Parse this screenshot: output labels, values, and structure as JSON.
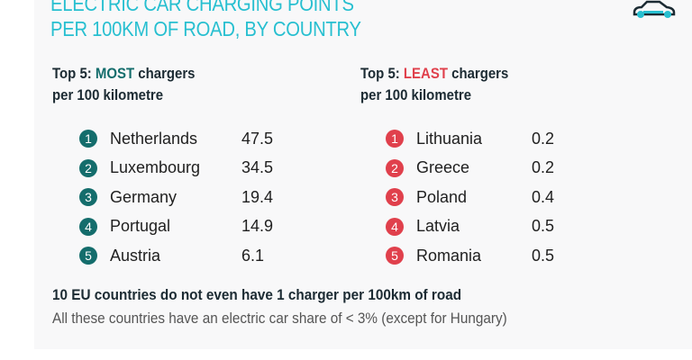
{
  "title": {
    "line1": "ELECTRIC CAR CHARGING POINTS",
    "line2": "PER 100KM OF ROAD, BY COUNTRY"
  },
  "most": {
    "prefix": "Top 5: ",
    "highlight": "MOST",
    "suffix": " chargers",
    "line2": "per 100 kilometre",
    "items": [
      {
        "rank": "1",
        "country": "Netherlands",
        "value": "47.5"
      },
      {
        "rank": "2",
        "country": "Luxembourg",
        "value": "34.5"
      },
      {
        "rank": "3",
        "country": "Germany",
        "value": "19.4"
      },
      {
        "rank": "4",
        "country": "Portugal",
        "value": "14.9"
      },
      {
        "rank": "5",
        "country": "Austria",
        "value": "6.1"
      }
    ]
  },
  "least": {
    "prefix": "Top 5: ",
    "highlight": "LEAST",
    "suffix": " chargers",
    "line2": "per 100 kilometre",
    "items": [
      {
        "rank": "1",
        "country": "Lithuania",
        "value": "0.2"
      },
      {
        "rank": "2",
        "country": "Greece",
        "value": "0.2"
      },
      {
        "rank": "3",
        "country": "Poland",
        "value": "0.4"
      },
      {
        "rank": "4",
        "country": "Latvia",
        "value": "0.5"
      },
      {
        "rank": "5",
        "country": "Romania",
        "value": "0.5"
      }
    ]
  },
  "footer": {
    "bold": "10 EU countries do not even have 1 charger per 100km of road",
    "note": "All these countries have an electric car share of < 3% (except for Hungary)"
  },
  "colors": {
    "title": "#27bfd0",
    "most": "#146d6c",
    "least": "#e0404c"
  }
}
